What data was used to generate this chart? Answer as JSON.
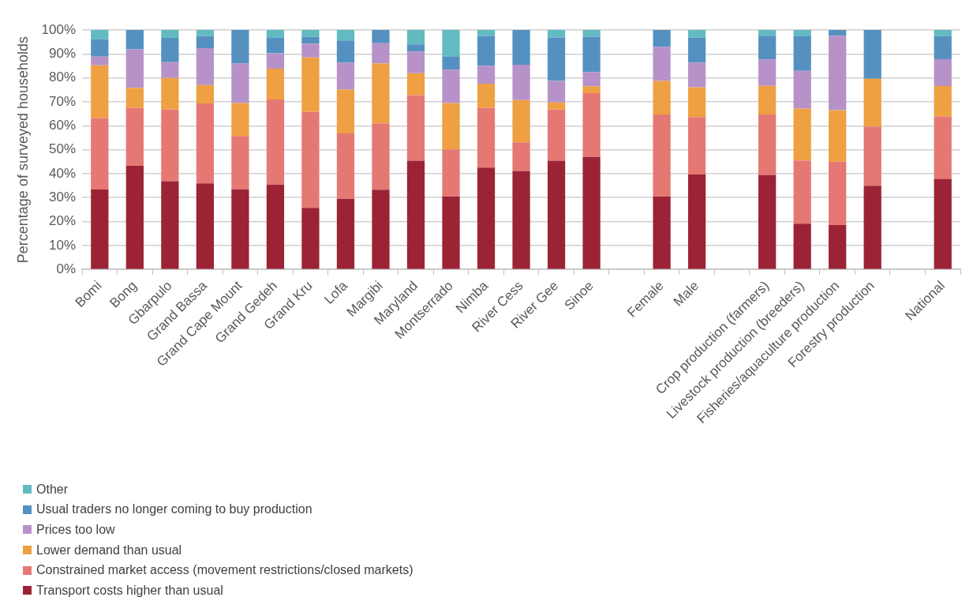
{
  "chart_data": {
    "type": "bar",
    "stacked": true,
    "ylabel": "Percentage of surveyed households",
    "categories": [
      "Bomi",
      "Bong",
      "Gbarpulo",
      "Grand Bassa",
      "Grand Cape Mount",
      "Grand Gedeh",
      "Grand Kru",
      "Lofa",
      "Margibi",
      "Maryland",
      "Montserrado",
      "Nimba",
      "River Cess",
      "River Gee",
      "Sinoe",
      null,
      "Female",
      "Male",
      null,
      "Crop production (farmers)",
      "Livestock production (breeders)",
      "Fisheries/aquaculture production",
      "Forestry production",
      null,
      "National"
    ],
    "series": [
      {
        "name": "Transport costs higher than usual",
        "color": "#9b2335",
        "values": [
          33.4,
          43.3,
          36.8,
          35.9,
          33.4,
          35.4,
          25.7,
          29.5,
          33.3,
          45.4,
          30.5,
          42.5,
          41.1,
          45.4,
          47.0,
          null,
          30.5,
          39.6,
          null,
          39.5,
          19.1,
          18.5,
          34.9,
          null,
          37.8
        ]
      },
      {
        "name": "Constrained market access (movement restrictions/closed markets)",
        "color": "#e57873",
        "values": [
          29.8,
          24.2,
          30.0,
          33.4,
          22.3,
          35.6,
          40.1,
          27.3,
          27.7,
          27.4,
          19.6,
          25.0,
          12.0,
          21.4,
          26.6,
          null,
          34.2,
          24.0,
          null,
          25.2,
          26.4,
          26.5,
          24.8,
          null,
          26.1
        ]
      },
      {
        "name": "Lower demand than usual",
        "color": "#eea042",
        "values": [
          22.0,
          8.3,
          13.2,
          7.7,
          13.8,
          12.8,
          22.7,
          18.3,
          25.1,
          9.1,
          19.4,
          10.1,
          17.6,
          2.9,
          2.9,
          null,
          14.0,
          12.5,
          null,
          12.0,
          21.7,
          21.5,
          19.9,
          null,
          12.7
        ]
      },
      {
        "name": "Prices too low",
        "color": "#b792c8",
        "values": [
          3.7,
          16.1,
          6.6,
          15.4,
          16.6,
          6.5,
          5.8,
          11.3,
          8.4,
          9.1,
          13.9,
          7.5,
          14.8,
          9.0,
          5.9,
          null,
          14.3,
          10.3,
          null,
          11.0,
          15.7,
          31.1,
          0,
          null,
          11.2
        ]
      },
      {
        "name": "Usual traders no longer coming to buy production",
        "color": "#5591c0",
        "values": [
          7.3,
          8.1,
          10.1,
          5.1,
          13.9,
          6.4,
          2.8,
          9.2,
          5.5,
          3.0,
          5.4,
          12.4,
          14.5,
          18.2,
          14.8,
          null,
          7.0,
          10.5,
          null,
          9.9,
          14.5,
          2.4,
          20.4,
          null,
          9.7
        ]
      },
      {
        "name": "Other",
        "color": "#62bbc1",
        "values": [
          3.8,
          0,
          3.3,
          2.5,
          0,
          3.3,
          2.9,
          4.4,
          0,
          6.0,
          11.2,
          2.5,
          0,
          3.1,
          2.8,
          null,
          0,
          3.1,
          null,
          2.4,
          2.6,
          0,
          0,
          null,
          2.5
        ]
      }
    ],
    "ylim": [
      0,
      100
    ],
    "yticks": [
      {
        "value": 0,
        "label": "0%"
      },
      {
        "value": 10,
        "label": "10%"
      },
      {
        "value": 20,
        "label": "20%"
      },
      {
        "value": 30,
        "label": "30%"
      },
      {
        "value": 40,
        "label": "40%"
      },
      {
        "value": 50,
        "label": "50%"
      },
      {
        "value": 60,
        "label": "60%"
      },
      {
        "value": 70,
        "label": "70%"
      },
      {
        "value": 80,
        "label": "80%"
      },
      {
        "value": 90,
        "label": "90%"
      },
      {
        "value": 100,
        "label": "100%"
      }
    ],
    "grid": "y",
    "legend": "bottom left"
  }
}
